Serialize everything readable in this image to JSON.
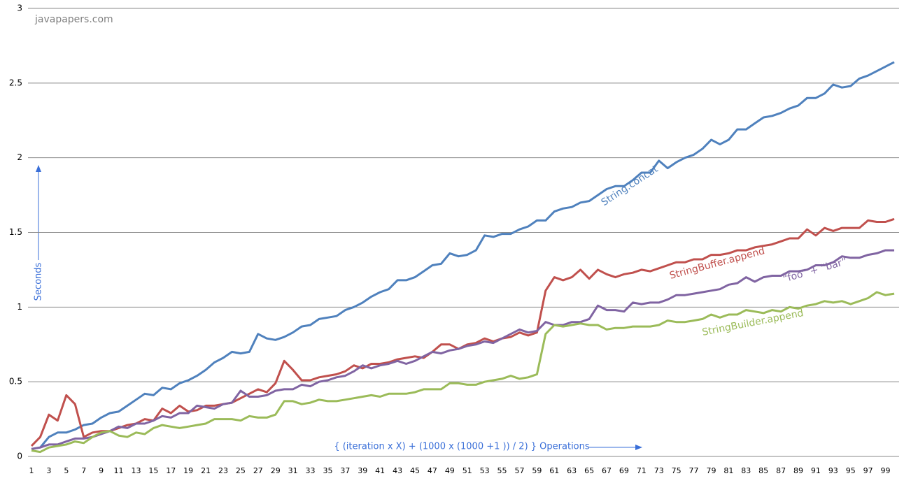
{
  "chart_data": {
    "type": "line",
    "watermark": "javapapers.com",
    "y_label": "Seconds",
    "x_label": "{ (iteration x X) + (1000 x (1000 +1 )) / 2) } Operations",
    "categories": [
      1,
      null,
      3,
      null,
      5,
      null,
      7,
      null,
      9,
      null,
      11,
      null,
      13,
      null,
      15,
      null,
      17,
      null,
      19,
      null,
      21,
      null,
      23,
      null,
      25,
      null,
      27,
      null,
      29,
      null,
      31,
      null,
      33,
      null,
      35,
      null,
      37,
      null,
      39,
      null,
      41,
      null,
      43,
      null,
      45,
      null,
      47,
      null,
      49,
      null,
      51,
      null,
      53,
      null,
      55,
      null,
      57,
      null,
      59,
      null,
      61,
      null,
      63,
      null,
      65,
      null,
      67,
      null,
      69,
      null,
      71,
      null,
      73,
      null,
      75,
      null,
      77,
      null,
      79,
      null,
      81,
      null,
      83,
      null,
      85,
      null,
      87,
      null,
      89,
      null,
      91,
      null,
      93,
      null,
      95,
      null,
      97,
      null,
      99,
      null
    ],
    "ylim": [
      0,
      3
    ],
    "yticks": [
      0,
      0.5,
      1,
      1.5,
      2,
      2.5,
      3
    ],
    "grid": true,
    "series": [
      {
        "name": "String.concat",
        "color": "#4f81bd",
        "values": [
          0.05,
          0.06,
          0.13,
          0.16,
          0.16,
          0.18,
          0.21,
          0.22,
          0.26,
          0.29,
          0.3,
          0.34,
          0.38,
          0.42,
          0.41,
          0.46,
          0.45,
          0.49,
          0.51,
          0.54,
          0.58,
          0.63,
          0.66,
          0.7,
          0.69,
          0.7,
          0.82,
          0.79,
          0.78,
          0.8,
          0.83,
          0.87,
          0.88,
          0.92,
          0.93,
          0.94,
          0.98,
          1.0,
          1.03,
          1.07,
          1.1,
          1.12,
          1.18,
          1.18,
          1.2,
          1.24,
          1.28,
          1.29,
          1.36,
          1.34,
          1.35,
          1.38,
          1.48,
          1.47,
          1.49,
          1.49,
          1.52,
          1.54,
          1.58,
          1.58,
          1.64,
          1.66,
          1.67,
          1.7,
          1.71,
          1.75,
          1.79,
          1.81,
          1.81,
          1.85,
          1.9,
          1.9,
          1.98,
          1.93,
          1.97,
          2.0,
          2.02,
          2.06,
          2.12,
          2.09,
          2.12,
          2.19,
          2.19,
          2.23,
          2.27,
          2.28,
          2.3,
          2.33,
          2.35,
          2.4,
          2.4,
          2.43,
          2.49,
          2.47,
          2.48,
          2.53,
          2.55,
          2.58,
          2.61,
          2.64
        ]
      },
      {
        "name": "StringBuffer.append",
        "color": "#c0504d",
        "values": [
          0.07,
          0.13,
          0.28,
          0.24,
          0.41,
          0.35,
          0.13,
          0.16,
          0.17,
          0.17,
          0.19,
          0.21,
          0.22,
          0.25,
          0.24,
          0.32,
          0.29,
          0.34,
          0.3,
          0.31,
          0.34,
          0.34,
          0.35,
          0.36,
          0.39,
          0.42,
          0.45,
          0.43,
          0.49,
          0.64,
          0.58,
          0.51,
          0.51,
          0.53,
          0.54,
          0.55,
          0.57,
          0.61,
          0.59,
          0.62,
          0.62,
          0.63,
          0.65,
          0.66,
          0.67,
          0.66,
          0.7,
          0.75,
          0.75,
          0.72,
          0.75,
          0.76,
          0.79,
          0.77,
          0.79,
          0.8,
          0.83,
          0.81,
          0.83,
          1.11,
          1.2,
          1.18,
          1.2,
          1.25,
          1.19,
          1.25,
          1.22,
          1.2,
          1.22,
          1.23,
          1.25,
          1.24,
          1.26,
          1.28,
          1.3,
          1.3,
          1.32,
          1.32,
          1.35,
          1.35,
          1.36,
          1.38,
          1.38,
          1.4,
          1.41,
          1.42,
          1.44,
          1.46,
          1.46,
          1.52,
          1.48,
          1.53,
          1.51,
          1.53,
          1.53,
          1.53,
          1.58,
          1.57,
          1.57,
          1.59
        ]
      },
      {
        "name": "“foo” + “bar”",
        "color": "#8064a2",
        "values": [
          0.05,
          0.06,
          0.08,
          0.08,
          0.1,
          0.12,
          0.12,
          0.13,
          0.15,
          0.17,
          0.2,
          0.19,
          0.22,
          0.22,
          0.24,
          0.27,
          0.26,
          0.29,
          0.29,
          0.34,
          0.33,
          0.32,
          0.35,
          0.36,
          0.44,
          0.4,
          0.4,
          0.41,
          0.44,
          0.45,
          0.45,
          0.48,
          0.47,
          0.5,
          0.51,
          0.53,
          0.54,
          0.57,
          0.61,
          0.59,
          0.61,
          0.62,
          0.64,
          0.62,
          0.64,
          0.67,
          0.7,
          0.69,
          0.71,
          0.72,
          0.74,
          0.75,
          0.77,
          0.76,
          0.79,
          0.82,
          0.85,
          0.83,
          0.84,
          0.9,
          0.88,
          0.88,
          0.9,
          0.9,
          0.92,
          1.01,
          0.98,
          0.98,
          0.97,
          1.03,
          1.02,
          1.03,
          1.03,
          1.05,
          1.08,
          1.08,
          1.09,
          1.1,
          1.11,
          1.12,
          1.15,
          1.16,
          1.2,
          1.17,
          1.2,
          1.21,
          1.21,
          1.24,
          1.24,
          1.25,
          1.28,
          1.28,
          1.3,
          1.34,
          1.33,
          1.33,
          1.35,
          1.36,
          1.38,
          1.38
        ]
      },
      {
        "name": "StringBuilder.append",
        "color": "#9bbb59",
        "values": [
          0.04,
          0.03,
          0.06,
          0.07,
          0.08,
          0.1,
          0.09,
          0.13,
          0.16,
          0.17,
          0.14,
          0.13,
          0.16,
          0.15,
          0.19,
          0.21,
          0.2,
          0.19,
          0.2,
          0.21,
          0.22,
          0.25,
          0.25,
          0.25,
          0.24,
          0.27,
          0.26,
          0.26,
          0.28,
          0.37,
          0.37,
          0.35,
          0.36,
          0.38,
          0.37,
          0.37,
          0.38,
          0.39,
          0.4,
          0.41,
          0.4,
          0.42,
          0.42,
          0.42,
          0.43,
          0.45,
          0.45,
          0.45,
          0.49,
          0.49,
          0.48,
          0.48,
          0.5,
          0.51,
          0.52,
          0.54,
          0.52,
          0.53,
          0.55,
          0.82,
          0.88,
          0.87,
          0.88,
          0.89,
          0.88,
          0.88,
          0.85,
          0.86,
          0.86,
          0.87,
          0.87,
          0.87,
          0.88,
          0.91,
          0.9,
          0.9,
          0.91,
          0.92,
          0.95,
          0.93,
          0.95,
          0.95,
          0.98,
          0.97,
          0.96,
          0.98,
          0.97,
          1.0,
          0.99,
          1.01,
          1.02,
          1.04,
          1.03,
          1.04,
          1.02,
          1.04,
          1.06,
          1.1,
          1.08,
          1.09
        ]
      }
    ]
  }
}
